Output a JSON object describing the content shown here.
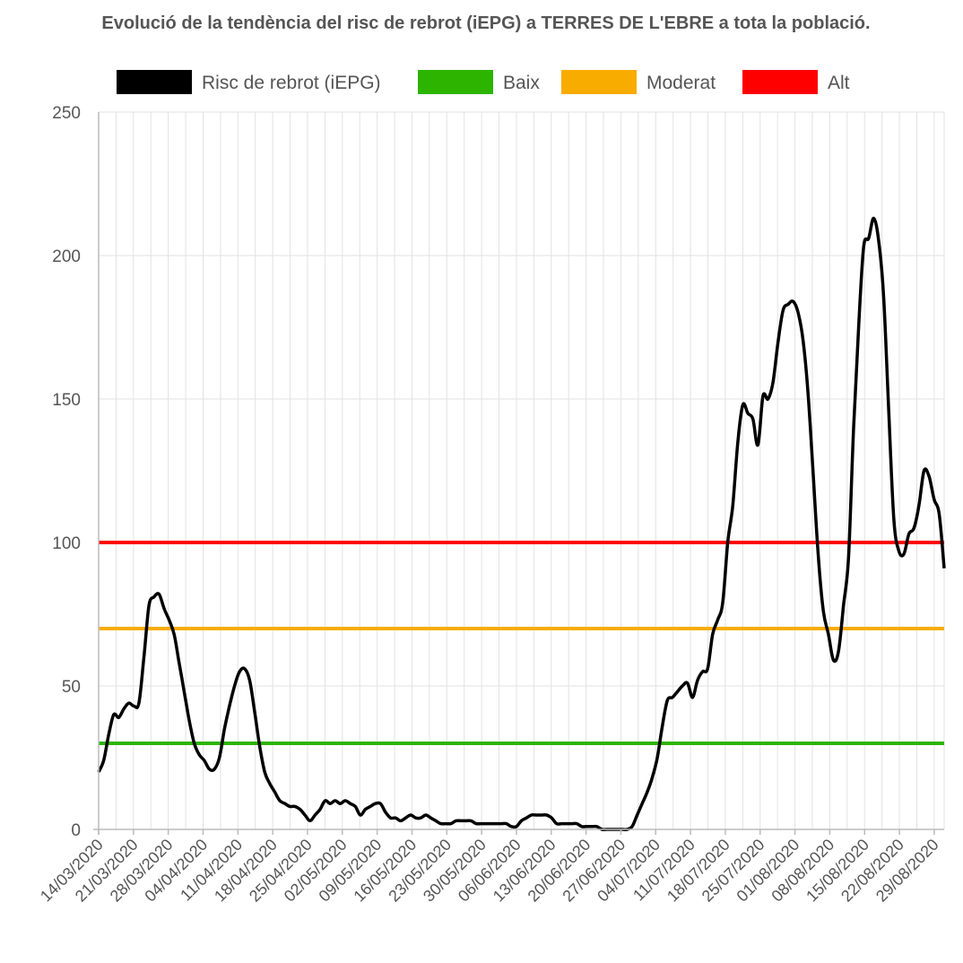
{
  "chart_data": {
    "type": "line",
    "title": "Evolució de la tendència del risc de rebrot (iEPG) a TERRES DE L'EBRE a tota la població.",
    "xlabel": "",
    "ylabel": "",
    "ylim": [
      0,
      250
    ],
    "yticks": [
      "0",
      "50",
      "100",
      "150",
      "200",
      "250"
    ],
    "xticks": [
      "14/03/2020",
      "21/03/2020",
      "28/03/2020",
      "04/04/2020",
      "11/04/2020",
      "18/04/2020",
      "25/04/2020",
      "02/05/2020",
      "09/05/2020",
      "16/05/2020",
      "23/05/2020",
      "30/05/2020",
      "06/06/2020",
      "13/06/2020",
      "20/06/2020",
      "27/06/2020",
      "04/07/2020",
      "11/07/2020",
      "18/07/2020",
      "25/07/2020",
      "01/08/2020",
      "08/08/2020",
      "15/08/2020",
      "22/08/2020",
      "29/08/2020"
    ],
    "x_start": "14/03/2020",
    "x_end": "31/08/2020",
    "grid": true,
    "legend": "top",
    "series": [
      {
        "name": "Risc de rebrot (iEPG)",
        "color": "#000000",
        "values": [
          20,
          24,
          33,
          40,
          39,
          42,
          44,
          43,
          44,
          60,
          78,
          81,
          82,
          77,
          73,
          68,
          58,
          48,
          38,
          30,
          26,
          24,
          21,
          21,
          25,
          35,
          43,
          50,
          55,
          56,
          52,
          41,
          29,
          20,
          16,
          13,
          10,
          9,
          8,
          8,
          7,
          5,
          3,
          5,
          7,
          10,
          9,
          10,
          9,
          10,
          9,
          8,
          5,
          7,
          8,
          9,
          9,
          6,
          4,
          4,
          3,
          4,
          5,
          4,
          4,
          5,
          4,
          3,
          2,
          2,
          2,
          3,
          3,
          3,
          3,
          2,
          2,
          2,
          2,
          2,
          2,
          2,
          1,
          1,
          3,
          4,
          5,
          5,
          5,
          5,
          4,
          2,
          2,
          2,
          2,
          2,
          1,
          1,
          1,
          1,
          0,
          0,
          0,
          0,
          0,
          0,
          1,
          5,
          9,
          13,
          18,
          25,
          36,
          45,
          46,
          48,
          50,
          51,
          46,
          52,
          55,
          56,
          68,
          73,
          79,
          100,
          113,
          135,
          148,
          145,
          143,
          134,
          151,
          150,
          156,
          170,
          181,
          183,
          184,
          180,
          170,
          151,
          123,
          95,
          76,
          68,
          59,
          62,
          78,
          95,
          140,
          175,
          203,
          206,
          213,
          205,
          185,
          145,
          108,
          97,
          96,
          103,
          105,
          113,
          125,
          123,
          115,
          110,
          91
        ]
      },
      {
        "name": "Baix",
        "color": "#2db400",
        "values": [
          30
        ]
      },
      {
        "name": "Moderat",
        "color": "#f8ac00",
        "values": [
          70
        ]
      },
      {
        "name": "Alt",
        "color": "#ff0000",
        "values": [
          100
        ]
      }
    ]
  }
}
